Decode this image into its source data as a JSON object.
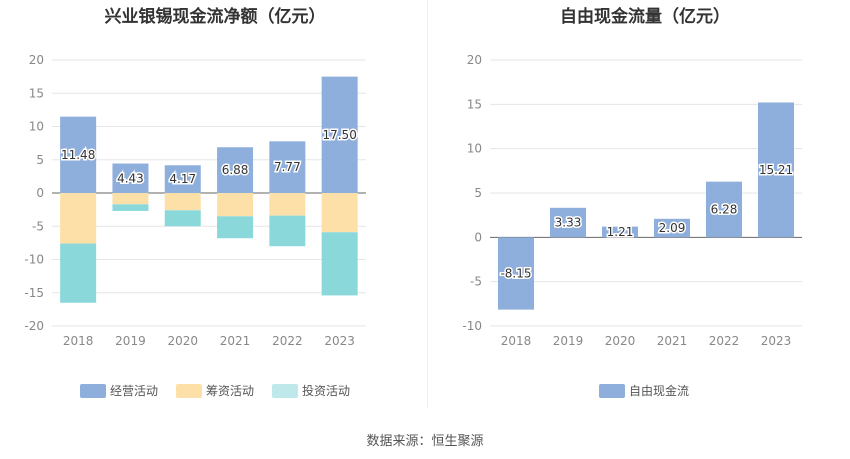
{
  "chart_data": [
    {
      "type": "bar",
      "stacked": true,
      "title": "兴业银锡现金流净额（亿元）",
      "categories": [
        "2018",
        "2019",
        "2020",
        "2021",
        "2022",
        "2023"
      ],
      "ylim": [
        -20,
        20
      ],
      "yticks": [
        20,
        15,
        10,
        5,
        0,
        -5,
        -10,
        -15,
        -20
      ],
      "grid": true,
      "legend_position": "bottom",
      "series": [
        {
          "name": "经营活动",
          "color": "#8eaedc",
          "values": [
            11.48,
            4.43,
            4.17,
            6.88,
            7.77,
            17.5
          ],
          "labels": [
            "11.48",
            "4.43",
            "4.17",
            "6.88",
            "7.77",
            "17.50"
          ]
        },
        {
          "name": "筹资活动",
          "color": "#fde0a8",
          "values": [
            -7.6,
            -1.7,
            -2.6,
            -3.5,
            -3.4,
            -5.9
          ]
        },
        {
          "name": "投资活动",
          "color": "#8ad8da",
          "values": [
            -8.9,
            -1.0,
            -2.4,
            -3.3,
            -4.6,
            -9.5
          ]
        }
      ]
    },
    {
      "type": "bar",
      "title": "自由现金流量（亿元）",
      "categories": [
        "2018",
        "2019",
        "2020",
        "2021",
        "2022",
        "2023"
      ],
      "ylim": [
        -10,
        20
      ],
      "yticks": [
        20,
        15,
        10,
        5,
        0,
        -5,
        -10
      ],
      "grid": true,
      "legend_position": "bottom",
      "series": [
        {
          "name": "自由现金流",
          "color": "#8eaedc",
          "values": [
            -8.15,
            3.33,
            1.21,
            2.09,
            6.28,
            15.21
          ],
          "labels": [
            "-8.15",
            "3.33",
            "1.21",
            "2.09",
            "6.28",
            "15.21"
          ]
        }
      ]
    }
  ],
  "legend_left_swatch_colors": [
    "#8eaedc",
    "#fde0a8",
    "#bfe8ea"
  ],
  "source": "数据来源：恒生聚源"
}
